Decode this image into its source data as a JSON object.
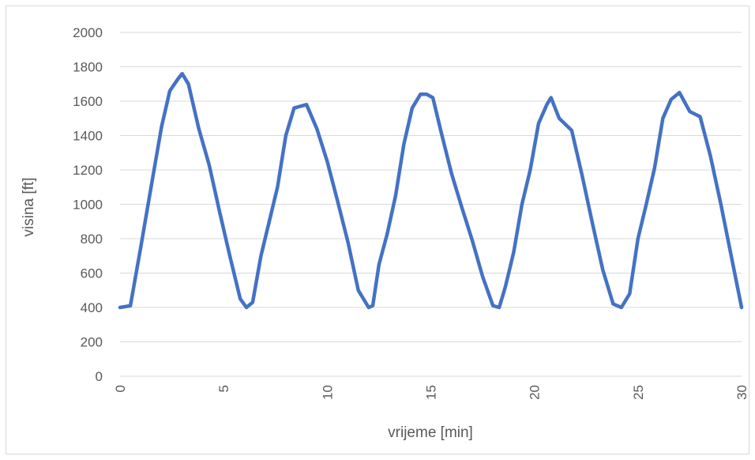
{
  "chart_data": {
    "type": "line",
    "title": "",
    "xlabel": "vrijeme [min]",
    "ylabel": "visina [ft]",
    "xlim": [
      0,
      30
    ],
    "ylim": [
      0,
      2000
    ],
    "x_ticks": [
      "0",
      "5",
      "10",
      "15",
      "20",
      "25",
      "30"
    ],
    "y_ticks": [
      "0",
      "200",
      "400",
      "600",
      "800",
      "1000",
      "1200",
      "1400",
      "1600",
      "1800",
      "2000"
    ],
    "grid": true,
    "legend": "none",
    "colors": {
      "line": "#4472c4",
      "grid": "#d9d9d9",
      "text": "#595959"
    },
    "series": [
      {
        "x": [
          0,
          0.5,
          1.0,
          1.5,
          2.0,
          2.4,
          2.8,
          3.0,
          3.3,
          3.8,
          4.3,
          4.8,
          5.3,
          5.8,
          6.1,
          6.4,
          6.8,
          7.2,
          7.6,
          8.0,
          8.4,
          8.7,
          9.0,
          9.5,
          10.0,
          10.5,
          11.0,
          11.5,
          12.0,
          12.2,
          12.5,
          12.9,
          13.3,
          13.7,
          14.1,
          14.5,
          14.8,
          15.1,
          15.5,
          16.0,
          16.5,
          17.0,
          17.5,
          18.0,
          18.3,
          18.6,
          19.0,
          19.4,
          19.8,
          20.2,
          20.6,
          20.8,
          21.2,
          21.8,
          22.3,
          22.8,
          23.3,
          23.8,
          24.2,
          24.6,
          25.0,
          25.4,
          25.8,
          26.2,
          26.6,
          27.0,
          27.5,
          28.0,
          28.5,
          29.0,
          29.5,
          30.0
        ],
        "y": [
          400,
          410,
          750,
          1100,
          1450,
          1660,
          1730,
          1760,
          1700,
          1440,
          1230,
          960,
          700,
          450,
          400,
          430,
          700,
          900,
          1100,
          1400,
          1560,
          1570,
          1580,
          1440,
          1250,
          1020,
          780,
          500,
          400,
          410,
          650,
          830,
          1050,
          1350,
          1560,
          1640,
          1640,
          1620,
          1420,
          1180,
          980,
          790,
          580,
          410,
          400,
          520,
          720,
          1000,
          1200,
          1470,
          1580,
          1620,
          1500,
          1430,
          1170,
          890,
          620,
          420,
          400,
          480,
          800,
          1000,
          1210,
          1500,
          1610,
          1650,
          1540,
          1510,
          1280,
          1000,
          700,
          400
        ]
      }
    ]
  }
}
